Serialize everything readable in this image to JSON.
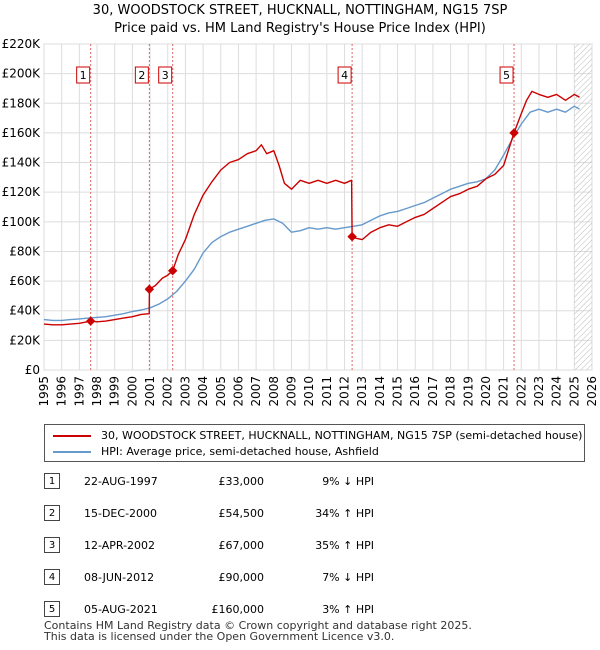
{
  "title_line1": "30, WOODSTOCK STREET, HUCKNALL, NOTTINGHAM, NG15 7SP",
  "title_line2": "Price paid vs. HM Land Registry's House Price Index (HPI)",
  "chart_data": {
    "type": "line",
    "xlim": [
      1995,
      2026
    ],
    "ylim": [
      0,
      220000
    ],
    "x_ticks": [
      1995,
      1996,
      1997,
      1998,
      1999,
      2000,
      2001,
      2002,
      2003,
      2004,
      2005,
      2006,
      2007,
      2008,
      2009,
      2010,
      2011,
      2012,
      2013,
      2014,
      2015,
      2016,
      2017,
      2018,
      2019,
      2020,
      2021,
      2022,
      2023,
      2024,
      2025,
      2026
    ],
    "y_ticks": [
      0,
      20000,
      40000,
      60000,
      80000,
      100000,
      120000,
      140000,
      160000,
      180000,
      200000,
      220000
    ],
    "y_tick_labels": [
      "£0",
      "£20K",
      "£40K",
      "£60K",
      "£80K",
      "£100K",
      "£120K",
      "£140K",
      "£160K",
      "£180K",
      "£200K",
      "£220K"
    ],
    "grid": true,
    "hatch_from": 2025.0,
    "series": [
      {
        "name": "30, WOODSTOCK STREET, HUCKNALL, NOTTINGHAM, NG15 7SP (semi-detached house)",
        "color": "#cc0000",
        "x": [
          1995.0,
          1995.5,
          1996.0,
          1996.5,
          1997.0,
          1997.64,
          1998.0,
          1998.5,
          1999.0,
          1999.5,
          2000.0,
          2000.5,
          2000.95,
          2000.96,
          2001.3,
          2001.7,
          2002.0,
          2002.28,
          2002.6,
          2003.0,
          2003.5,
          2004.0,
          2004.5,
          2005.0,
          2005.5,
          2006.0,
          2006.5,
          2007.0,
          2007.3,
          2007.6,
          2008.0,
          2008.3,
          2008.6,
          2009.0,
          2009.5,
          2010.0,
          2010.5,
          2011.0,
          2011.5,
          2012.0,
          2012.4,
          2012.43,
          2012.6,
          2013.0,
          2013.5,
          2014.0,
          2014.5,
          2015.0,
          2015.5,
          2016.0,
          2016.5,
          2017.0,
          2017.5,
          2018.0,
          2018.5,
          2019.0,
          2019.5,
          2020.0,
          2020.5,
          2021.0,
          2021.59,
          2022.0,
          2022.3,
          2022.6,
          2023.0,
          2023.5,
          2024.0,
          2024.5,
          2025.0,
          2025.3
        ],
        "y": [
          31000,
          30500,
          30500,
          31000,
          31500,
          33000,
          32500,
          33000,
          34000,
          35000,
          36000,
          37500,
          38000,
          54500,
          57000,
          62000,
          64000,
          67000,
          78000,
          88000,
          105000,
          118000,
          127000,
          135000,
          140000,
          142000,
          146000,
          148000,
          152000,
          146000,
          148000,
          138000,
          126000,
          122000,
          128000,
          126000,
          128000,
          126000,
          128000,
          126000,
          128000,
          90000,
          89000,
          88000,
          93000,
          96000,
          98000,
          97000,
          100000,
          103000,
          105000,
          109000,
          113000,
          117000,
          119000,
          122000,
          124000,
          129000,
          132000,
          138000,
          160000,
          173000,
          182000,
          188000,
          186000,
          184000,
          186000,
          182000,
          186000,
          184000
        ]
      },
      {
        "name": "HPI: Average price, semi-detached house, Ashfield",
        "color": "#6699cc",
        "x": [
          1995.0,
          1995.5,
          1996.0,
          1996.5,
          1997.0,
          1997.5,
          1998.0,
          1998.5,
          1999.0,
          1999.5,
          2000.0,
          2000.5,
          2001.0,
          2001.5,
          2002.0,
          2002.5,
          2003.0,
          2003.5,
          2004.0,
          2004.5,
          2005.0,
          2005.5,
          2006.0,
          2006.5,
          2007.0,
          2007.5,
          2008.0,
          2008.5,
          2009.0,
          2009.5,
          2010.0,
          2010.5,
          2011.0,
          2011.5,
          2012.0,
          2012.5,
          2013.0,
          2013.5,
          2014.0,
          2014.5,
          2015.0,
          2015.5,
          2016.0,
          2016.5,
          2017.0,
          2017.5,
          2018.0,
          2018.5,
          2019.0,
          2019.5,
          2020.0,
          2020.5,
          2021.0,
          2021.5,
          2022.0,
          2022.5,
          2023.0,
          2023.5,
          2024.0,
          2024.5,
          2025.0,
          2025.3
        ],
        "y": [
          34000,
          33500,
          33500,
          34000,
          34500,
          35000,
          35500,
          36000,
          37000,
          38000,
          39500,
          40500,
          42000,
          44500,
          48000,
          53000,
          60000,
          68000,
          79000,
          86000,
          90000,
          93000,
          95000,
          97000,
          99000,
          101000,
          102000,
          99000,
          93000,
          94000,
          96000,
          95000,
          96000,
          95000,
          96000,
          97000,
          98000,
          101000,
          104000,
          106000,
          107000,
          109000,
          111000,
          113000,
          116000,
          119000,
          122000,
          124000,
          126000,
          127000,
          129000,
          135000,
          145000,
          156000,
          166000,
          174000,
          176000,
          174000,
          176000,
          174000,
          178000,
          176000
        ]
      }
    ],
    "sales": [
      {
        "num": "1",
        "x": 1997.64,
        "y": 33000
      },
      {
        "num": "2",
        "x": 2000.96,
        "y": 54500
      },
      {
        "num": "3",
        "x": 2002.28,
        "y": 67000
      },
      {
        "num": "4",
        "x": 2012.43,
        "y": 90000
      },
      {
        "num": "5",
        "x": 2021.59,
        "y": 160000
      }
    ]
  },
  "legend": {
    "red_label": "30, WOODSTOCK STREET, HUCKNALL, NOTTINGHAM, NG15 7SP (semi-detached house)",
    "blue_label": "HPI: Average price, semi-detached house, Ashfield"
  },
  "sales_table": [
    {
      "num": "1",
      "date": "22-AUG-1997",
      "price": "£33,000",
      "hpi": "9% ↓ HPI"
    },
    {
      "num": "2",
      "date": "15-DEC-2000",
      "price": "£54,500",
      "hpi": "34% ↑ HPI"
    },
    {
      "num": "3",
      "date": "12-APR-2002",
      "price": "£67,000",
      "hpi": "35% ↑ HPI"
    },
    {
      "num": "4",
      "date": "08-JUN-2012",
      "price": "£90,000",
      "hpi": "7% ↓ HPI"
    },
    {
      "num": "5",
      "date": "05-AUG-2021",
      "price": "£160,000",
      "hpi": "3% ↑ HPI"
    }
  ],
  "footer": {
    "line1": "Contains HM Land Registry data © Crown copyright and database right 2025.",
    "line2": "This data is licensed under the Open Government Licence v3.0."
  }
}
